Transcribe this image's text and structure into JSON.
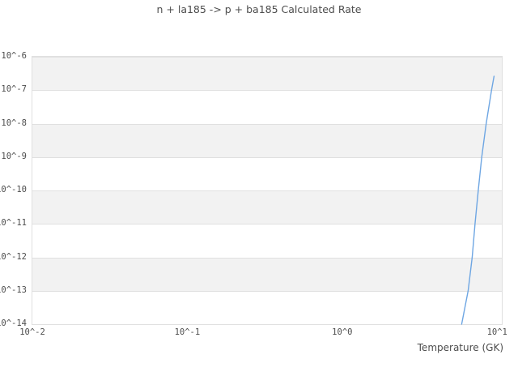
{
  "chart_data": {
    "type": "line",
    "title": "n + la185 -> p + ba185 Calculated Rate",
    "xlabel": "Temperature (GK)",
    "ylabel": "",
    "x_scale": "log",
    "y_scale": "log",
    "xlim_log10": [
      -2,
      1.03
    ],
    "ylim_log10": [
      -14,
      -6
    ],
    "grid": "horizontal-decade-bands",
    "legend": "none",
    "colors": {
      "band": "#f2f2f2",
      "gridline": "#e0e0e0",
      "plot_border": "#e0e0e0",
      "text": "#4d4d4d",
      "line": "#6ea6e3"
    },
    "xticks": [
      {
        "label": "10^-2",
        "log10": -2
      },
      {
        "label": "10^-1",
        "log10": -1
      },
      {
        "label": "10^0",
        "log10": 0
      },
      {
        "label": "10^1",
        "log10": 1
      }
    ],
    "yticks": [
      {
        "label": "10^-6",
        "log10": -6
      },
      {
        "label": "10^-7",
        "log10": -7
      },
      {
        "label": "10^-8",
        "log10": -8
      },
      {
        "label": "10^-9",
        "log10": -9
      },
      {
        "label": "10^-10",
        "log10": -10
      },
      {
        "label": "10^-11",
        "log10": -11
      },
      {
        "label": "10^-12",
        "log10": -12
      },
      {
        "label": "10^-13",
        "log10": -13
      },
      {
        "label": "10^-14",
        "log10": -14
      }
    ],
    "series": [
      {
        "name": "calculated rate",
        "color": "#6ea6e3",
        "x_units": "GK",
        "points": [
          [
            5.9,
            1e-14
          ],
          [
            6.5,
            1e-13
          ],
          [
            6.9,
            1e-12
          ],
          [
            7.2,
            1e-11
          ],
          [
            7.55,
            1e-10
          ],
          [
            7.95,
            1e-09
          ],
          [
            8.5,
            1e-08
          ],
          [
            9.2,
            1e-07
          ],
          [
            9.55,
            2.6e-07
          ]
        ]
      }
    ]
  }
}
